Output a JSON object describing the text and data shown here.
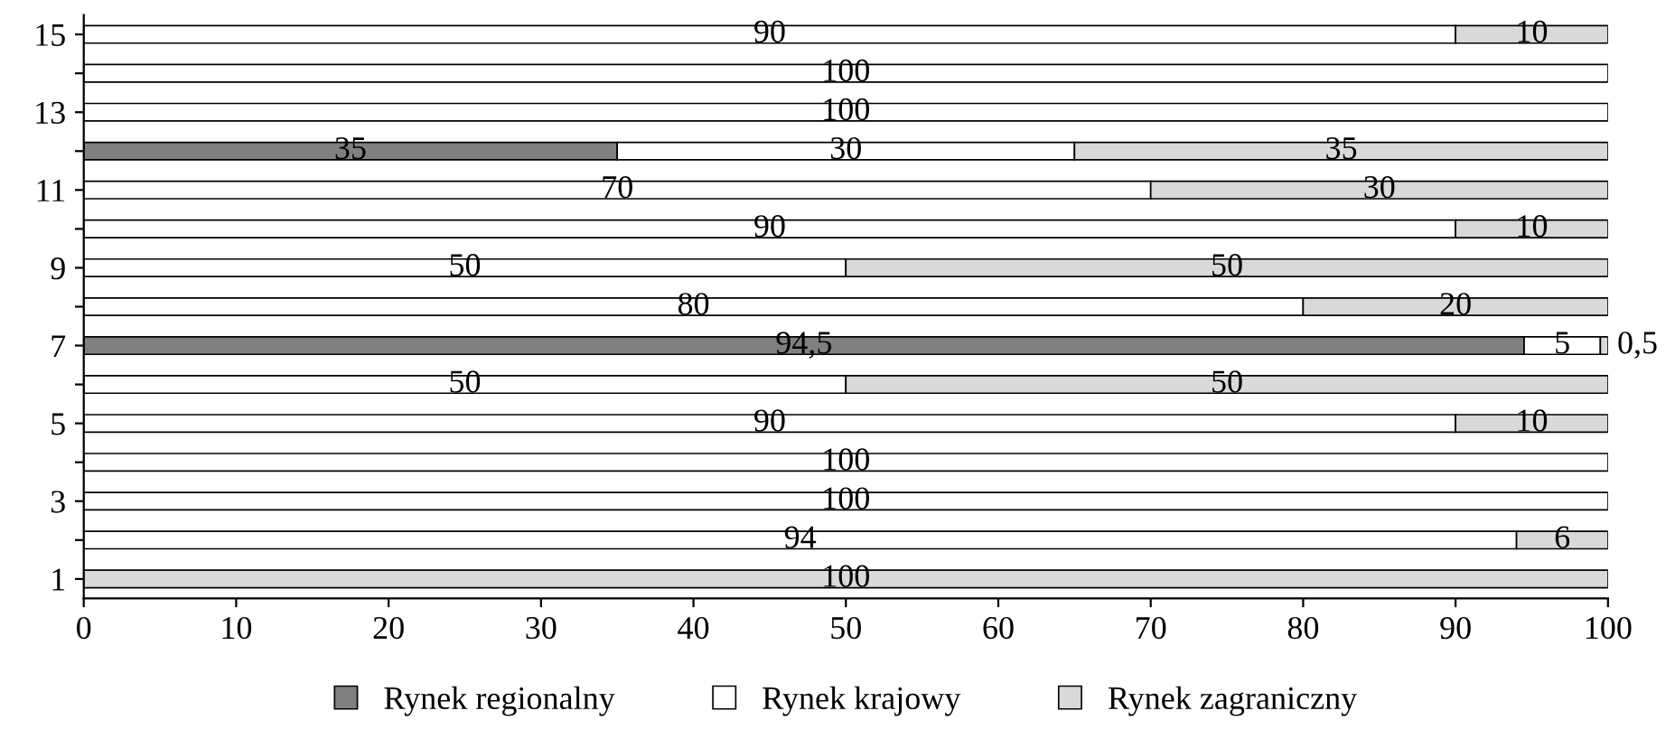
{
  "chart_data": {
    "type": "bar",
    "orientation": "horizontal",
    "stacked": true,
    "categories": [
      "15",
      null,
      "13",
      null,
      "11",
      null,
      "9",
      null,
      "7",
      null,
      "5",
      null,
      "3",
      null,
      "1"
    ],
    "series": [
      {
        "name": "Rynek regionalny",
        "color": "#808080",
        "values": [
          null,
          null,
          null,
          35,
          null,
          null,
          null,
          null,
          94.5,
          null,
          null,
          null,
          null,
          null,
          null
        ],
        "value_labels": [
          null,
          null,
          null,
          "35",
          null,
          null,
          null,
          null,
          "94,5",
          null,
          null,
          null,
          null,
          null,
          null
        ]
      },
      {
        "name": "Rynek krajowy",
        "color": "#ffffff",
        "values": [
          90,
          100,
          100,
          30,
          70,
          90,
          50,
          80,
          5,
          50,
          90,
          100,
          100,
          94,
          null
        ],
        "value_labels": [
          "90",
          "100",
          "100",
          "30",
          "70",
          "90",
          "50",
          "80",
          "5",
          "50",
          "90",
          "100",
          "100",
          "94",
          null
        ]
      },
      {
        "name": "Rynek zagraniczny",
        "color": "#d9d9d9",
        "values": [
          10,
          null,
          null,
          35,
          30,
          10,
          50,
          20,
          0.5,
          50,
          10,
          null,
          null,
          6,
          100
        ],
        "value_labels": [
          "10",
          null,
          null,
          "35",
          "30",
          "10",
          "50",
          "20",
          "0,5",
          "50",
          "10",
          null,
          null,
          "6",
          "100"
        ]
      }
    ],
    "xlim": [
      0,
      100
    ],
    "xticks": [
      0,
      10,
      20,
      30,
      40,
      50,
      60,
      70,
      80,
      90,
      100
    ],
    "grid": false,
    "legend": "bottom"
  }
}
